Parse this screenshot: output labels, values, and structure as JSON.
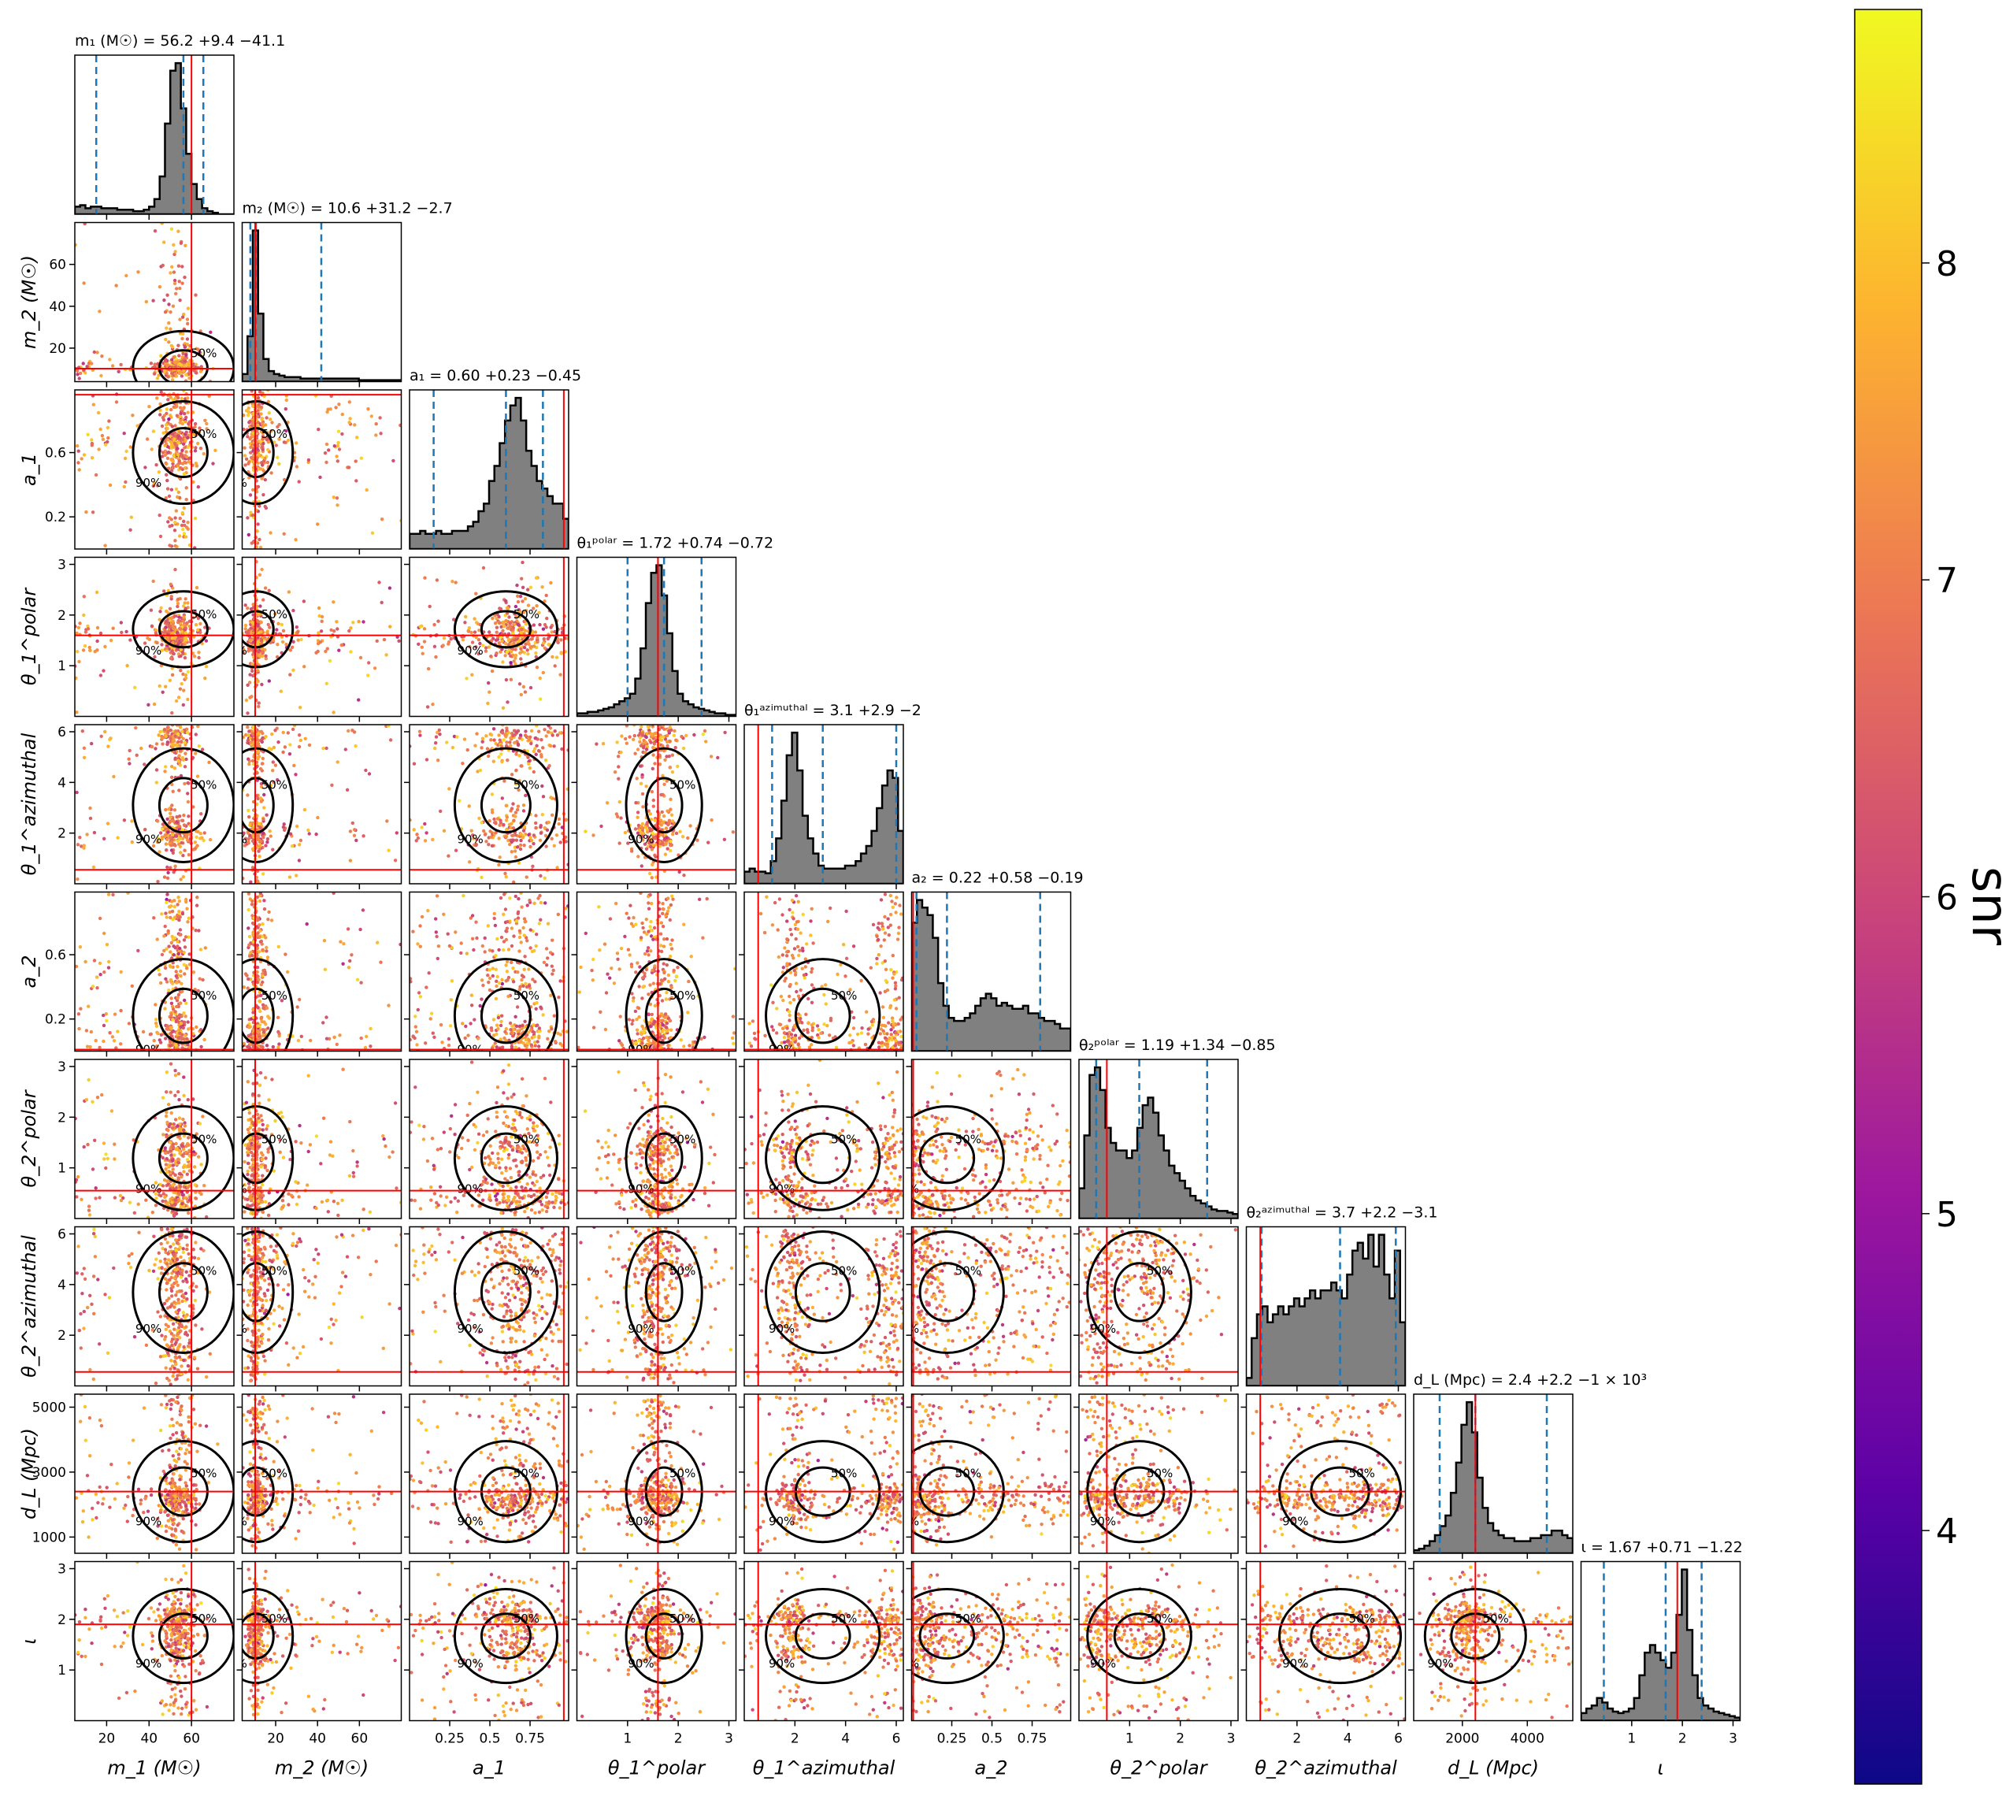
{
  "chart_data": {
    "type": "corner",
    "parameters": [
      {
        "key": "m1",
        "axis_label": "m_1 (M☉)",
        "title": "m₁ (M☉) = 56.2 +9.4 −41.1",
        "range": [
          5,
          80
        ],
        "ticks": [
          20,
          40,
          60
        ],
        "yticks": [],
        "median": 56.2,
        "lo": 15.1,
        "hi": 65.6,
        "truth": 60,
        "hist": [
          0.05,
          0.06,
          0.04,
          0.05,
          0.05,
          0.04,
          0.04,
          0.04,
          0.03,
          0.03,
          0.03,
          0.02,
          0.02,
          0.03,
          0.05,
          0.1,
          0.25,
          0.6,
          0.95,
          1.0,
          0.7,
          0.4,
          0.2,
          0.1,
          0.04,
          0.02,
          0.01,
          0.0,
          0.0,
          0.0
        ]
      },
      {
        "key": "m2",
        "axis_label": "m_2 (M☉)",
        "title": "m₂ (M☉) = 10.6 +31.2 −2.7",
        "range": [
          4,
          80
        ],
        "ticks": [
          20,
          40,
          60
        ],
        "yticks": [
          20,
          40,
          60
        ],
        "median": 10.6,
        "lo": 7.9,
        "hi": 41.8,
        "truth": 10.2,
        "hist": [
          0.05,
          0.3,
          1.0,
          0.45,
          0.15,
          0.07,
          0.05,
          0.04,
          0.03,
          0.03,
          0.03,
          0.02,
          0.02,
          0.02,
          0.02,
          0.02,
          0.02,
          0.02,
          0.02,
          0.02,
          0.02,
          0.02,
          0.01,
          0.01,
          0.01,
          0.01,
          0.01,
          0.01,
          0.01,
          0.01
        ]
      },
      {
        "key": "a1",
        "axis_label": "a_1",
        "title": "a₁ = 0.60 +0.23 −0.45",
        "range": [
          0,
          0.99
        ],
        "ticks": [
          0.25,
          0.5,
          0.75
        ],
        "yticks": [
          0.2,
          0.6
        ],
        "median": 0.6,
        "lo": 0.15,
        "hi": 0.83,
        "truth": 0.96,
        "hist": [
          0.1,
          0.1,
          0.12,
          0.1,
          0.1,
          0.12,
          0.1,
          0.1,
          0.12,
          0.12,
          0.12,
          0.15,
          0.18,
          0.25,
          0.3,
          0.45,
          0.55,
          0.7,
          0.85,
          0.95,
          1.0,
          0.85,
          0.65,
          0.55,
          0.45,
          0.4,
          0.35,
          0.3,
          0.3,
          0.2
        ]
      },
      {
        "key": "theta1p",
        "axis_label": "θ_1^polar",
        "title": "θ₁ᵖᵒˡᵃʳ = 1.72 +0.74 −0.72",
        "range": [
          0.0,
          3.14
        ],
        "ticks": [
          1,
          2,
          3
        ],
        "yticks": [
          1,
          2,
          3
        ],
        "median": 1.72,
        "lo": 1.0,
        "hi": 2.46,
        "truth": 1.6,
        "hist": [
          0.02,
          0.02,
          0.03,
          0.03,
          0.04,
          0.05,
          0.06,
          0.08,
          0.1,
          0.12,
          0.15,
          0.25,
          0.45,
          0.75,
          0.95,
          1.0,
          0.8,
          0.55,
          0.3,
          0.15,
          0.1,
          0.08,
          0.06,
          0.05,
          0.04,
          0.03,
          0.02,
          0.02,
          0.01,
          0.01
        ]
      },
      {
        "key": "theta1a",
        "axis_label": "θ_1^azimuthal",
        "title": "θ₁ᵃᶻⁱᵐᵘᵗʰᵃˡ = 3.1 +2.9 −2",
        "range": [
          0.0,
          6.28
        ],
        "ticks": [
          2,
          4,
          6
        ],
        "yticks": [
          2,
          4,
          6
        ],
        "median": 3.1,
        "lo": 1.1,
        "hi": 6.0,
        "truth": 0.55,
        "hist": [
          0.08,
          0.1,
          0.08,
          0.08,
          0.07,
          0.15,
          0.3,
          0.55,
          0.85,
          1.0,
          0.75,
          0.45,
          0.3,
          0.2,
          0.12,
          0.1,
          0.1,
          0.1,
          0.1,
          0.12,
          0.12,
          0.15,
          0.2,
          0.25,
          0.35,
          0.5,
          0.65,
          0.75,
          0.7,
          0.35
        ]
      },
      {
        "key": "a2",
        "axis_label": "a_2",
        "title": "a₂ = 0.22 +0.58 −0.19",
        "range": [
          0,
          0.99
        ],
        "ticks": [
          0.25,
          0.5,
          0.75
        ],
        "yticks": [
          0.2,
          0.6
        ],
        "median": 0.22,
        "lo": 0.03,
        "hi": 0.8,
        "truth": 0.01,
        "hist": [
          0.85,
          1.0,
          0.95,
          0.9,
          0.75,
          0.45,
          0.3,
          0.22,
          0.2,
          0.2,
          0.22,
          0.25,
          0.3,
          0.35,
          0.38,
          0.35,
          0.3,
          0.32,
          0.3,
          0.28,
          0.28,
          0.3,
          0.25,
          0.25,
          0.22,
          0.2,
          0.2,
          0.18,
          0.15,
          0.15
        ]
      },
      {
        "key": "theta2p",
        "axis_label": "θ_2^polar",
        "title": "θ₂ᵖᵒˡᵃʳ = 1.19 +1.34 −0.85",
        "range": [
          0.0,
          3.14
        ],
        "ticks": [
          1,
          2,
          3
        ],
        "yticks": [
          1,
          2,
          3
        ],
        "median": 1.19,
        "lo": 0.34,
        "hi": 2.53,
        "truth": 0.55,
        "hist": [
          0.2,
          0.55,
          0.95,
          1.0,
          0.85,
          0.6,
          0.5,
          0.45,
          0.45,
          0.4,
          0.45,
          0.6,
          0.75,
          0.8,
          0.7,
          0.55,
          0.45,
          0.35,
          0.3,
          0.25,
          0.2,
          0.15,
          0.12,
          0.1,
          0.08,
          0.06,
          0.05,
          0.05,
          0.04,
          0.03
        ]
      },
      {
        "key": "theta2a",
        "axis_label": "θ_2^azimuthal",
        "title": "θ₂ᵃᶻⁱᵐᵘᵗʰᵃˡ = 3.7 +2.2 −3.1",
        "range": [
          0.0,
          6.28
        ],
        "ticks": [
          2,
          4,
          6
        ],
        "yticks": [
          2,
          4,
          6
        ],
        "median": 3.7,
        "lo": 0.6,
        "hi": 5.9,
        "truth": 0.55,
        "hist": [
          0.05,
          0.3,
          0.45,
          0.5,
          0.4,
          0.45,
          0.5,
          0.45,
          0.5,
          0.55,
          0.5,
          0.55,
          0.6,
          0.55,
          0.6,
          0.6,
          0.65,
          0.6,
          0.55,
          0.7,
          0.85,
          0.9,
          0.8,
          0.95,
          0.75,
          0.95,
          0.7,
          0.55,
          0.85,
          0.4
        ]
      },
      {
        "key": "dL",
        "axis_label": "d_L (Mpc)",
        "title": "d_L (Mpc) = 2.4 +2.2 −1 × 10³",
        "range": [
          500,
          5400
        ],
        "ticks": [
          2000,
          4000
        ],
        "yticks": [
          1000,
          3000,
          5000
        ],
        "median": 2400,
        "lo": 1300,
        "hi": 4600,
        "truth": 2400,
        "hist": [
          0.02,
          0.03,
          0.05,
          0.08,
          0.12,
          0.18,
          0.25,
          0.4,
          0.6,
          0.85,
          1.0,
          0.8,
          0.5,
          0.3,
          0.2,
          0.15,
          0.12,
          0.1,
          0.1,
          0.08,
          0.08,
          0.08,
          0.1,
          0.1,
          0.12,
          0.12,
          0.15,
          0.15,
          0.12,
          0.1
        ]
      },
      {
        "key": "iota",
        "axis_label": "ι",
        "title": "ι = 1.67 +0.71 −1.22",
        "range": [
          0.0,
          3.14
        ],
        "ticks": [
          1,
          2,
          3
        ],
        "yticks": [
          1,
          2,
          3
        ],
        "median": 1.67,
        "lo": 0.45,
        "hi": 2.38,
        "truth": 1.9,
        "hist": [
          0.05,
          0.08,
          0.1,
          0.15,
          0.12,
          0.08,
          0.06,
          0.05,
          0.06,
          0.08,
          0.15,
          0.3,
          0.45,
          0.5,
          0.45,
          0.4,
          0.35,
          0.45,
          0.7,
          1.0,
          0.6,
          0.3,
          0.15,
          0.1,
          0.08,
          0.06,
          0.05,
          0.04,
          0.03,
          0.02
        ]
      }
    ],
    "scatter_colorbar": {
      "label": "snr",
      "range": [
        3.2,
        8.8
      ],
      "ticks": [
        4,
        5,
        6,
        7,
        8
      ],
      "colormap": [
        "#0d0887",
        "#5c01a6",
        "#9c179e",
        "#cc4778",
        "#ed7953",
        "#fdb42f",
        "#f0f921"
      ]
    },
    "contour_levels": [
      "50%",
      "90%"
    ],
    "colors": {
      "hist_fill": "#808080",
      "quantile_line": "#1f77b4",
      "truth_line": "#ff0000",
      "contour": "#000000"
    }
  }
}
